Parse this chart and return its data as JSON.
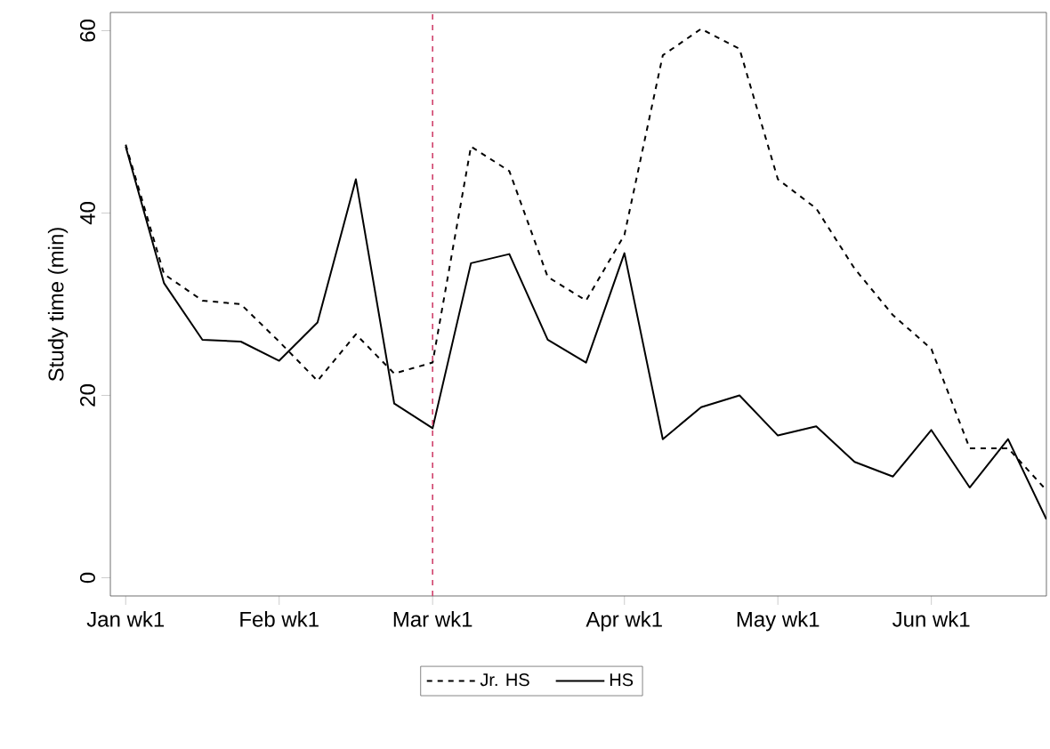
{
  "chart_data": {
    "type": "line",
    "ylabel": "Study time (min)",
    "categories": [
      "Jan wk1",
      null,
      null,
      null,
      "Feb wk1",
      null,
      null,
      null,
      "Mar wk1",
      null,
      null,
      null,
      null,
      "Apr wk1",
      null,
      null,
      null,
      "May wk1",
      null,
      null,
      null,
      "Jun wk1",
      null,
      null,
      null
    ],
    "ylim": [
      -2,
      62
    ],
    "yticks": [
      0,
      20,
      40,
      60
    ],
    "series": [
      {
        "name": "Jr. HS",
        "color": "#000000",
        "line_style": "dashed",
        "values": [
          47.5,
          33.3,
          30.4,
          30,
          25.9,
          21.6,
          26.7,
          22.4,
          23.6,
          47.3,
          44.6,
          33,
          30.4,
          37.6,
          57.3,
          60.2,
          58,
          43.7,
          40.5,
          33.9,
          28.8,
          25.1,
          14.2,
          14.2,
          9.6
        ]
      },
      {
        "name": "HS",
        "color": "#000000",
        "line_style": "solid",
        "values": [
          47.3,
          32.3,
          26.1,
          25.9,
          23.8,
          28,
          43.7,
          19.1,
          16.4,
          34.5,
          35.5,
          26.1,
          23.6,
          35.6,
          15.2,
          18.7,
          20,
          15.6,
          16.6,
          12.7,
          11.1,
          16.2,
          9.9,
          15.2,
          6.4
        ]
      }
    ],
    "ref_lines": [
      {
        "axis": "x",
        "value": "Mar wk1",
        "color": "#d0406a",
        "line_style": "dashed"
      }
    ],
    "legend": "bottom",
    "grid": false,
    "marker": "none"
  }
}
